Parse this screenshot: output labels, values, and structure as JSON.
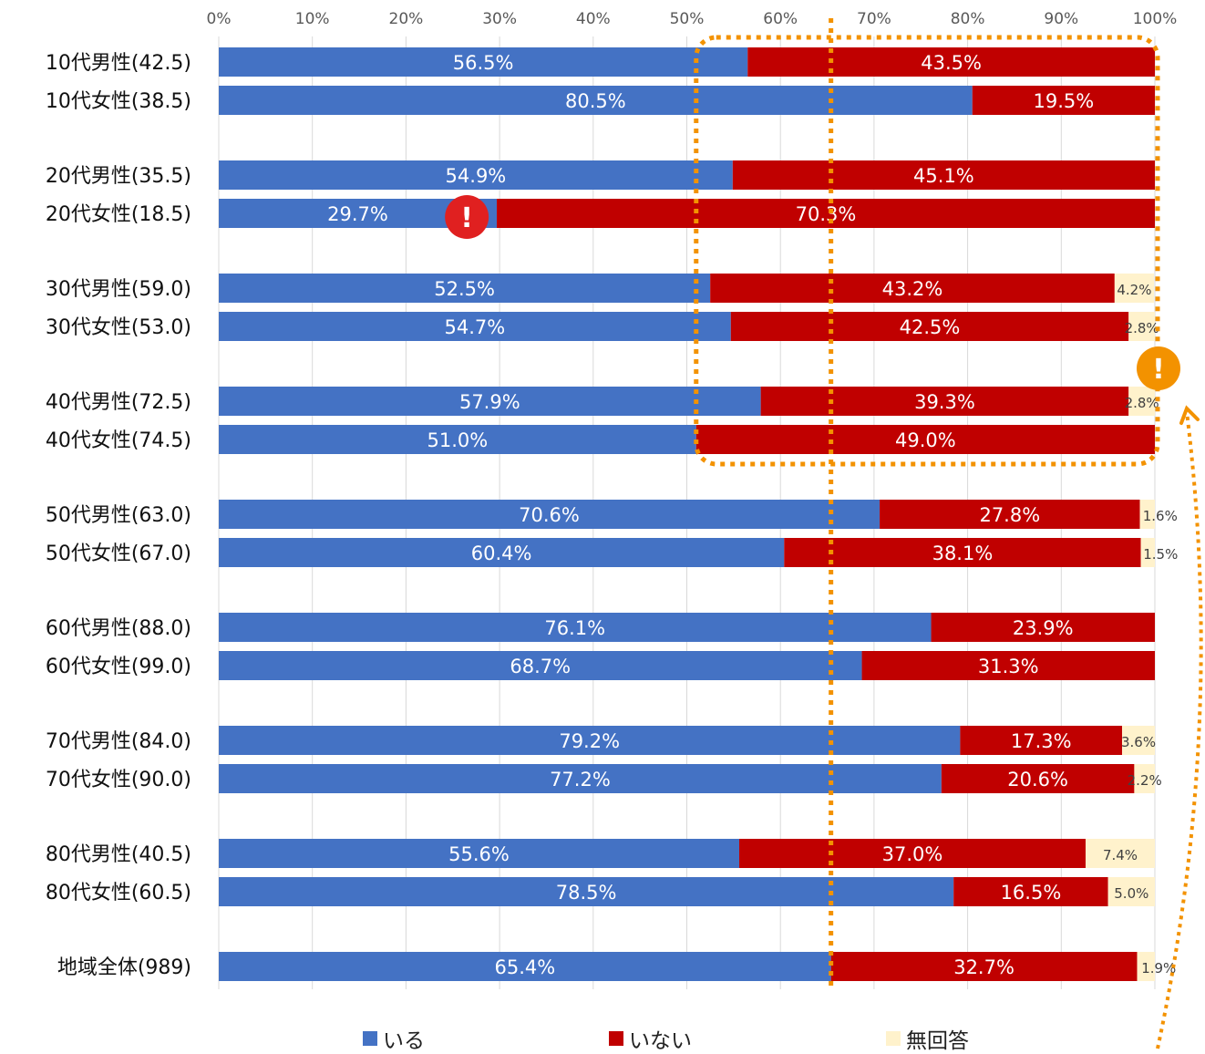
{
  "chart_data": {
    "type": "bar",
    "orientation": "horizontal",
    "stacked": true,
    "xlim": [
      0,
      100
    ],
    "xticks": [
      "0%",
      "10%",
      "20%",
      "30%",
      "40%",
      "50%",
      "60%",
      "70%",
      "80%",
      "90%",
      "100%"
    ],
    "grid": true,
    "legend_position": "bottom",
    "categories": [
      "10代男性(42.5)",
      "10代女性(38.5)",
      "20代男性(35.5)",
      "20代女性(18.5)",
      "30代男性(59.0)",
      "30代女性(53.0)",
      "40代男性(72.5)",
      "40代女性(74.5)",
      "50代男性(63.0)",
      "50代女性(67.0)",
      "60代男性(88.0)",
      "60代女性(99.0)",
      "70代男性(84.0)",
      "70代女性(90.0)",
      "80代男性(40.5)",
      "80代女性(60.5)",
      "地域全体(989)"
    ],
    "series": [
      {
        "name": "いる",
        "color": "#4472C4",
        "values": [
          56.5,
          80.5,
          54.9,
          29.7,
          52.5,
          54.7,
          57.9,
          51.0,
          70.6,
          60.4,
          76.1,
          68.7,
          79.2,
          77.2,
          55.6,
          78.5,
          65.4
        ],
        "labels": [
          "56.5%",
          "80.5%",
          "54.9%",
          "29.7%",
          "52.5%",
          "54.7%",
          "57.9%",
          "51.0%",
          "70.6%",
          "60.4%",
          "76.1%",
          "68.7%",
          "79.2%",
          "77.2%",
          "55.6%",
          "78.5%",
          "65.4%"
        ]
      },
      {
        "name": "いない",
        "color": "#C00000",
        "values": [
          43.5,
          19.5,
          45.1,
          70.3,
          43.2,
          42.5,
          39.3,
          49.0,
          27.8,
          38.1,
          23.9,
          31.3,
          17.3,
          20.6,
          37.0,
          16.5,
          32.7
        ],
        "labels": [
          "43.5%",
          "19.5%",
          "45.1%",
          "70.3%",
          "43.2%",
          "42.5%",
          "39.3%",
          "49.0%",
          "27.8%",
          "38.1%",
          "23.9%",
          "31.3%",
          "17.3%",
          "20.6%",
          "37.0%",
          "16.5%",
          "32.7%"
        ]
      },
      {
        "name": "無回答",
        "color": "#FFF2CC",
        "values": [
          0,
          0,
          0,
          0,
          4.2,
          2.8,
          2.8,
          0,
          1.6,
          1.5,
          0,
          0,
          3.6,
          2.2,
          7.4,
          5.0,
          1.9
        ],
        "labels": [
          "",
          "",
          "",
          "",
          "4.2%",
          "2.8%",
          "2.8%",
          "",
          "1.6%",
          "1.5%",
          "",
          "",
          "3.6%",
          "2.2%",
          "7.4%",
          "5.0%",
          "1.9%"
        ]
      }
    ],
    "reference_line": {
      "value": 65.4,
      "color": "#F39200"
    },
    "highlight_box": {
      "rows": [
        "10代男性(42.5)",
        "40代女性(74.5)"
      ],
      "x_range": [
        51.0,
        100
      ],
      "color": "#F39200"
    },
    "alert_markers": [
      {
        "row": "20代女性(18.5)",
        "value": 26.5,
        "color": "#E02020",
        "symbol": "!"
      },
      {
        "row": "40代男性(72.5)",
        "value": 100,
        "color": "#F39200",
        "symbol": "!"
      }
    ]
  }
}
